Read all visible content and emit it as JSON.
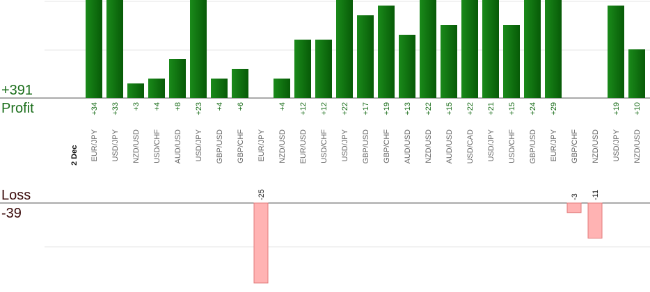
{
  "summary": {
    "profit_total": "+391",
    "profit_label": "Profit",
    "loss_label": "Loss",
    "loss_total": "-39",
    "date_label": "2 Dec"
  },
  "colors": {
    "profit_bar": "#0b6b0b",
    "profit_bar_light": "#1a8a1a",
    "profit_text": "#1b6e1b",
    "loss_bar": "#ffb3b3",
    "loss_bar_border": "#e07a7a",
    "loss_text": "#3a0a0a",
    "pair_text": "#666666",
    "grid": "#e6e6e6",
    "axis": "#555555"
  },
  "chart_data": {
    "type": "bar",
    "categories": [
      "EUR/JPY",
      "USD/JPY",
      "NZD/USD",
      "USD/CHF",
      "AUD/USD",
      "USD/JPY",
      "GBP/USD",
      "GBP/CHF",
      "EUR/JPY",
      "NZD/USD",
      "EUR/USD",
      "USD/CHF",
      "USD/JPY",
      "GBP/USD",
      "GBP/CHF",
      "AUD/USD",
      "NZD/USD",
      "AUD/USD",
      "USD/CAD",
      "USD/JPY",
      "USD/CHF",
      "GBP/USD",
      "EUR/JPY",
      "GBP/CHF",
      "NZD/USD",
      "USD/JPY",
      "NZD/USD"
    ],
    "values": [
      34,
      33,
      3,
      4,
      8,
      23,
      4,
      6,
      -25,
      4,
      12,
      12,
      22,
      17,
      19,
      13,
      22,
      15,
      22,
      21,
      15,
      24,
      29,
      -3,
      -11,
      19,
      10
    ],
    "value_labels": [
      "+34",
      "+33",
      "+3",
      "+4",
      "+8",
      "+23",
      "+4",
      "+6",
      "-25",
      "+4",
      "+12",
      "+12",
      "+22",
      "+17",
      "+19",
      "+13",
      "+22",
      "+15",
      "+22",
      "+21",
      "+15",
      "+24",
      "+29",
      "-3",
      "-11",
      "+19",
      "+10"
    ],
    "grid": true
  }
}
